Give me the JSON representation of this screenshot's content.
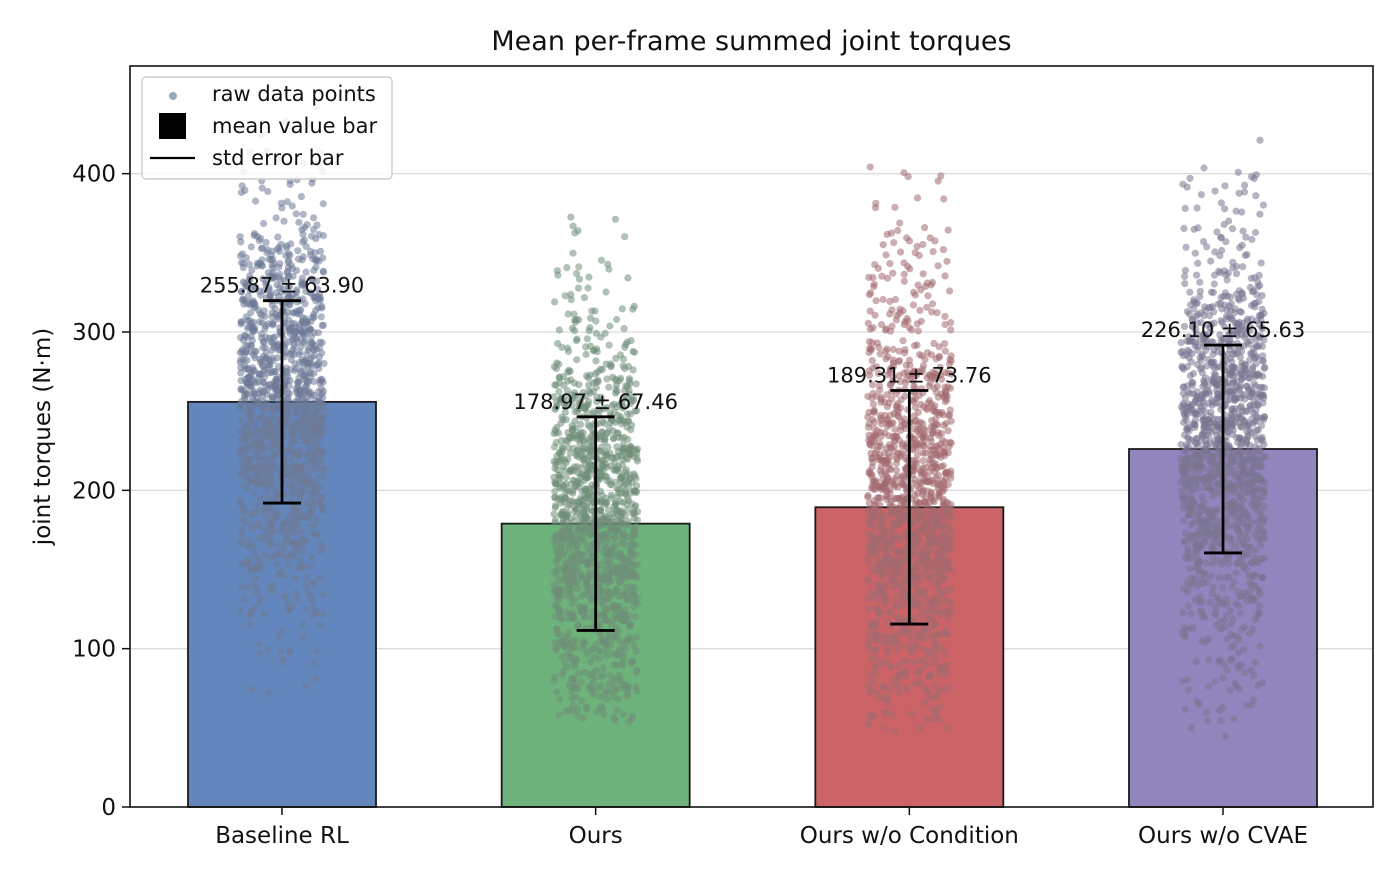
{
  "chart_data": {
    "type": "bar",
    "title": "Mean per-frame summed joint torques",
    "xlabel": "",
    "ylabel": "joint torques (N·m)",
    "ylim": [
      0,
      468
    ],
    "yticks": [
      0,
      100,
      200,
      300,
      400
    ],
    "grid": "horizontal",
    "legend_placement": "top-left",
    "legend": [
      {
        "label": "raw data points",
        "marker": "scatter"
      },
      {
        "label": "mean value bar",
        "marker": "square"
      },
      {
        "label": "std error bar",
        "marker": "line"
      }
    ],
    "categories": [
      "Baseline RL",
      "Ours",
      "Ours w/o Condition",
      "Ours w/o CVAE"
    ],
    "values": [
      255.87,
      178.97,
      189.31,
      226.1
    ],
    "std": [
      63.9,
      67.46,
      73.76,
      65.63
    ],
    "annotations": [
      "255.87 ± 63.90",
      "178.97 ± 67.46",
      "189.31 ± 73.76",
      "226.10 ± 65.63"
    ],
    "raw_range": [
      [
        70,
        445
      ],
      [
        52,
        382
      ],
      [
        48,
        410
      ],
      [
        42,
        423
      ]
    ],
    "bar_colors": [
      "#6387bd",
      "#6db37b",
      "#cc6467",
      "#9284bd"
    ],
    "point_colors": [
      "#6d7a98",
      "#6f8e78",
      "#a36a70",
      "#7a7590"
    ]
  }
}
